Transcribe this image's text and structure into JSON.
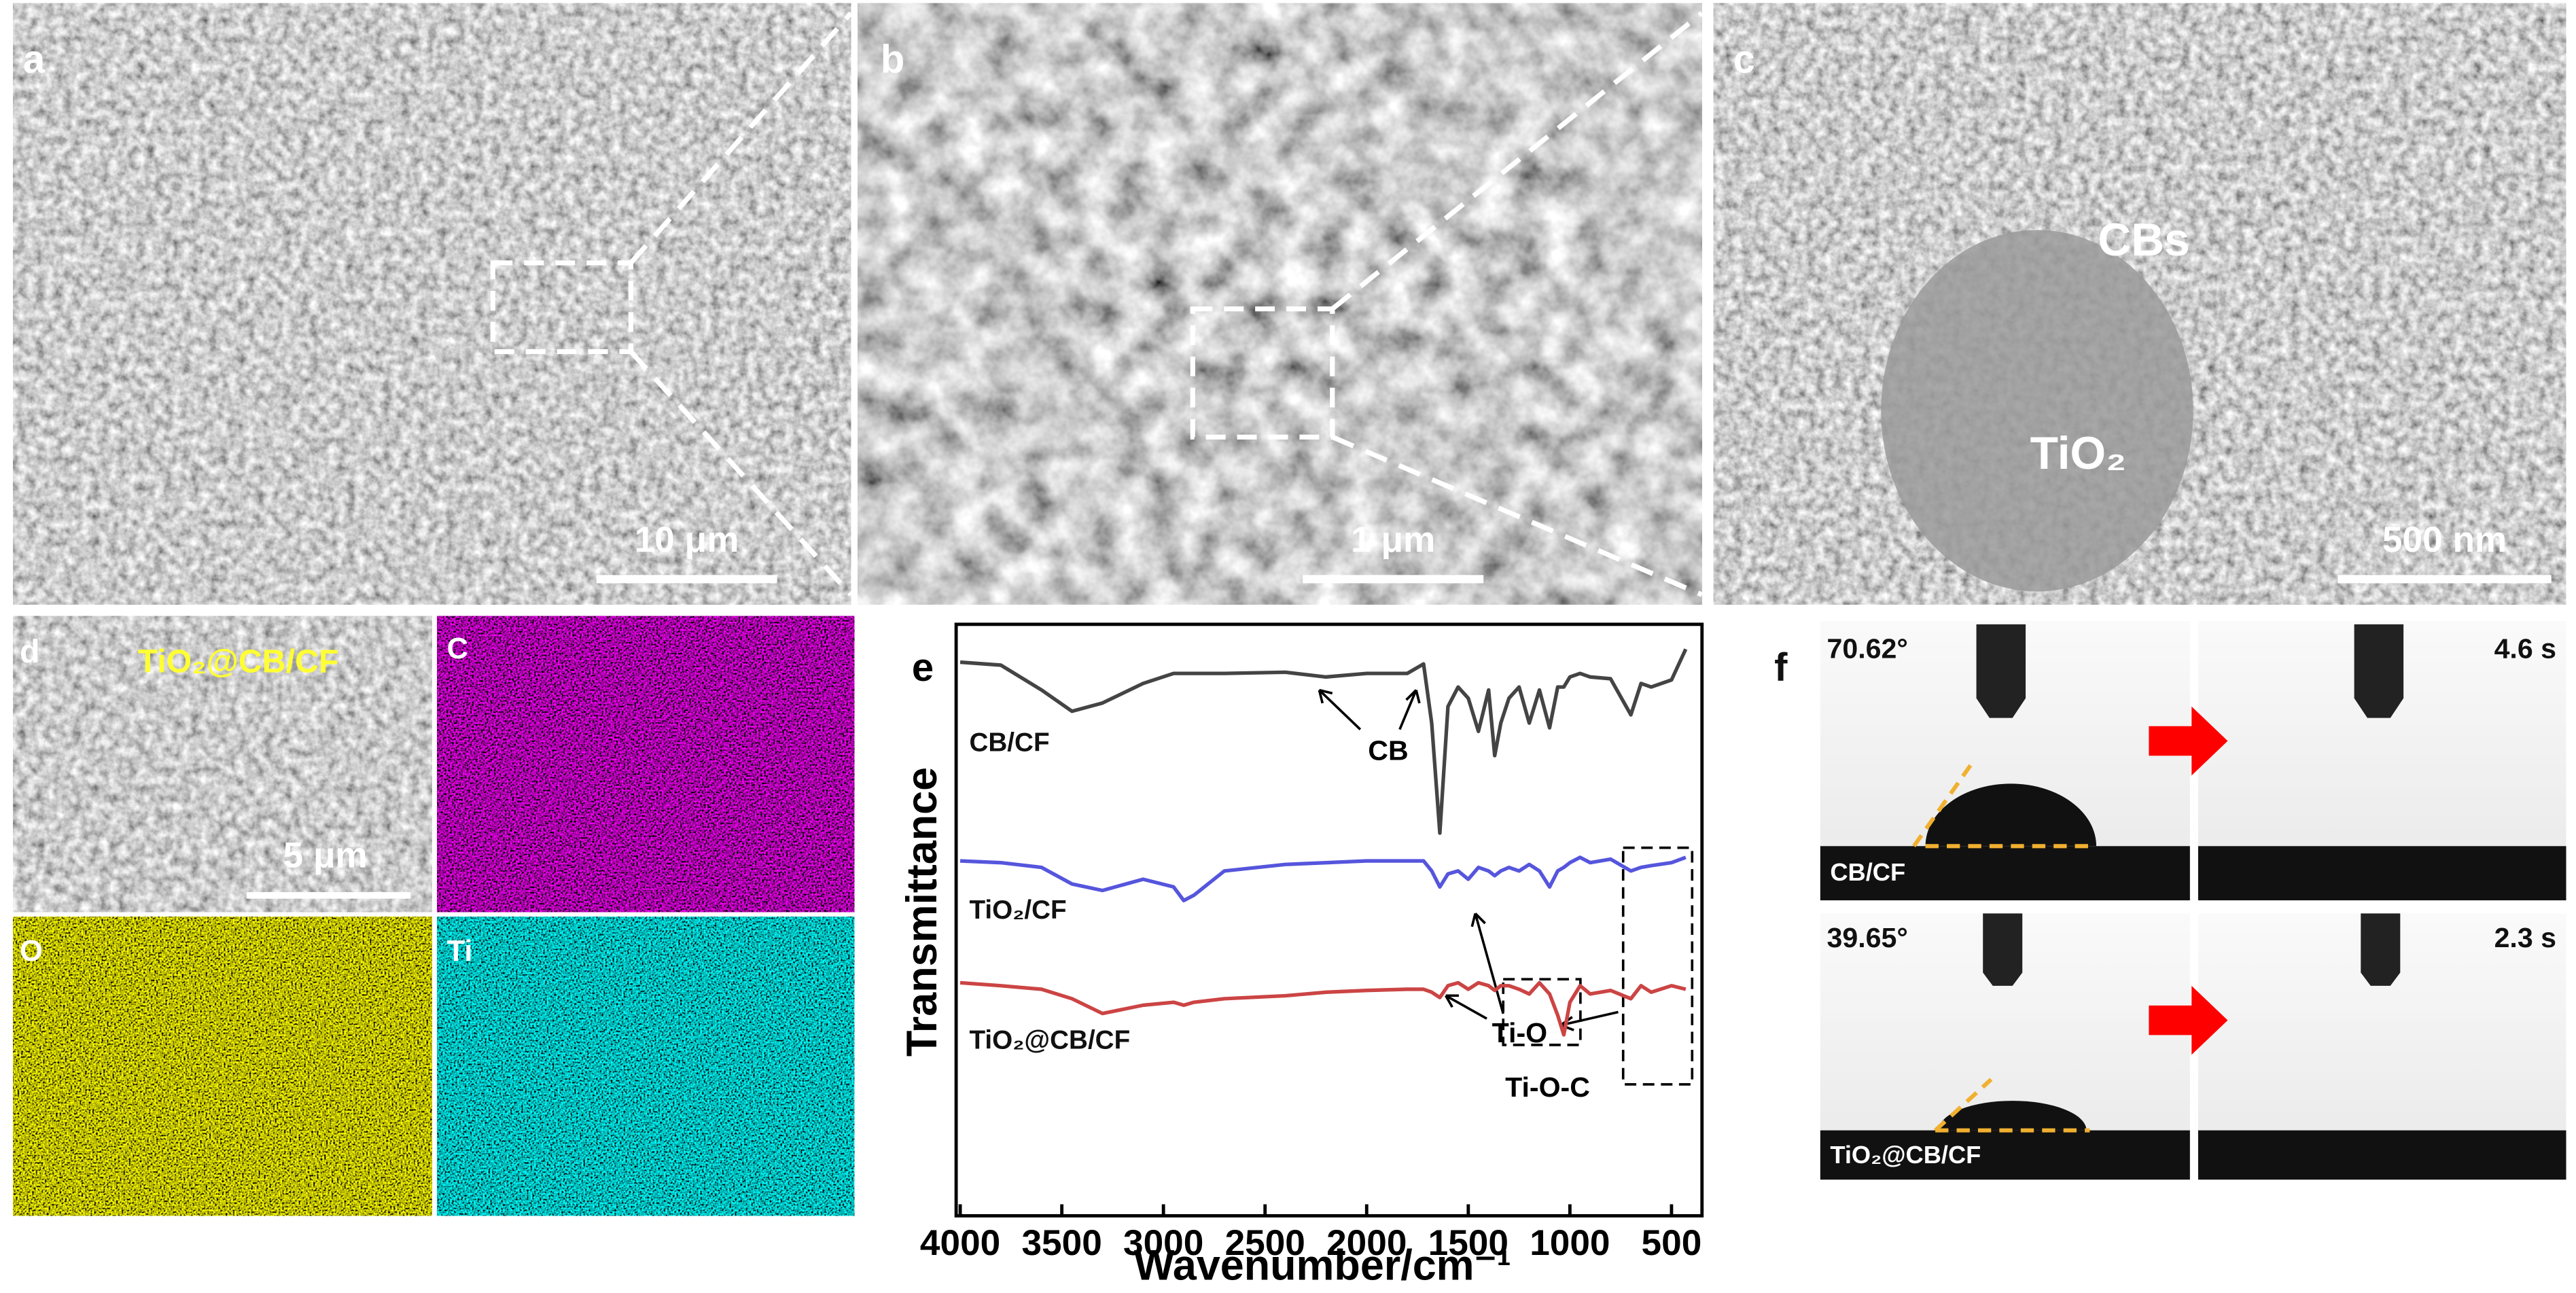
{
  "panels": {
    "a": {
      "label": "a",
      "scale_bar": "10 μm"
    },
    "b": {
      "label": "b",
      "scale_bar": "1 μm"
    },
    "c": {
      "label": "c",
      "particles": "CBs",
      "sphere": "TiO₂",
      "scale_bar": "500 nm"
    },
    "d": {
      "label": "d",
      "sample": "TiO₂@CB/CF",
      "scale_bar": "5 μm",
      "maps": [
        "C",
        "O",
        "Ti"
      ]
    },
    "f": {
      "label": "f",
      "rows": [
        {
          "angle": "70.62°",
          "time": "4.6 s",
          "sample": "CB/CF"
        },
        {
          "angle": "39.65°",
          "time": "2.3 s",
          "sample": "TiO₂@CB/CF"
        }
      ]
    }
  },
  "chart_data": {
    "type": "line",
    "label": "e",
    "xlabel": "Wavenumber/cm⁻¹",
    "ylabel": "Transmittance",
    "x": [
      4000,
      3800,
      3600,
      3450,
      3300,
      3100,
      2950,
      2900,
      2850,
      2700,
      2400,
      2200,
      2000,
      1800,
      1720,
      1680,
      1640,
      1600,
      1550,
      1500,
      1450,
      1400,
      1370,
      1340,
      1300,
      1250,
      1200,
      1150,
      1100,
      1060,
      1030,
      1000,
      950,
      900,
      800,
      700,
      650,
      600,
      500,
      430
    ],
    "series": [
      {
        "name": "CB/CF",
        "color": "#444444",
        "values": [
          93.6,
          93.1,
          88.9,
          85.3,
          86.7,
          90.0,
          91.7,
          91.7,
          91.7,
          91.7,
          91.9,
          91.1,
          91.7,
          91.7,
          93.3,
          83.3,
          64.7,
          86.1,
          89.4,
          87.5,
          81.9,
          88.9,
          77.8,
          83.3,
          87.5,
          89.4,
          83.3,
          88.9,
          82.5,
          89.4,
          89.4,
          91.1,
          91.7,
          91.1,
          90.8,
          84.7,
          90.0,
          89.4,
          90.6,
          95.8
        ]
      },
      {
        "name": "TiO₂/CF",
        "color": "#5555dd",
        "values": [
          60.0,
          59.7,
          58.9,
          56.1,
          55.0,
          56.9,
          55.6,
          53.3,
          54.2,
          58.3,
          59.4,
          59.7,
          60.0,
          60.0,
          60.0,
          58.3,
          55.6,
          57.8,
          58.3,
          56.9,
          58.9,
          58.3,
          57.5,
          58.3,
          58.9,
          58.3,
          59.4,
          58.3,
          55.6,
          58.3,
          58.9,
          59.7,
          60.6,
          59.7,
          60.3,
          58.3,
          58.9,
          59.2,
          59.7,
          60.6
        ]
      },
      {
        "name": "TiO₂@CB/CF",
        "color": "#cc4444",
        "values": [
          39.4,
          38.9,
          38.3,
          36.7,
          34.2,
          35.6,
          36.1,
          35.6,
          36.1,
          36.7,
          37.2,
          37.8,
          38.1,
          38.3,
          38.3,
          37.8,
          36.9,
          38.9,
          39.4,
          38.3,
          39.4,
          38.9,
          38.1,
          38.9,
          38.9,
          38.3,
          37.5,
          39.4,
          37.5,
          33.9,
          30.6,
          36.1,
          38.9,
          37.5,
          38.1,
          36.7,
          38.9,
          37.8,
          38.9,
          38.3
        ]
      }
    ],
    "xlim": [
      4020,
      350
    ],
    "xticks": [
      4000,
      3500,
      3000,
      2500,
      2000,
      1500,
      1000,
      500
    ],
    "ylim": [
      0,
      100
    ],
    "annotations": [
      "CB",
      "Ti-O",
      "Ti-O-C"
    ]
  }
}
